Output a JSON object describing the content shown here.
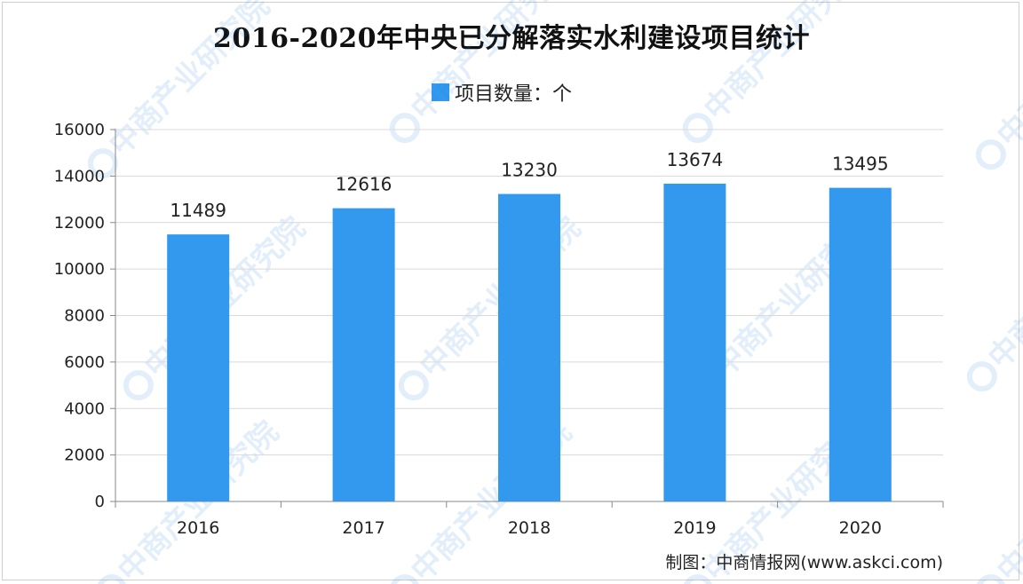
{
  "title": "2016-2020年中央已分解落实水利建设项目统计",
  "legend": {
    "label": "项目数量：个",
    "color": "#3399ee"
  },
  "source": "制图：中商情报网(www.askci.com)",
  "watermark": "中商产业研究院",
  "chart_data": {
    "type": "bar",
    "title": "2016-2020年中央已分解落实水利建设项目统计",
    "categories": [
      "2016",
      "2017",
      "2018",
      "2019",
      "2020"
    ],
    "series": [
      {
        "name": "项目数量：个",
        "values": [
          11489,
          12616,
          13230,
          13674,
          13495
        ]
      }
    ],
    "ylim": [
      0,
      16000
    ],
    "yticks": [
      0,
      2000,
      4000,
      6000,
      8000,
      10000,
      12000,
      14000,
      16000
    ],
    "grid": true,
    "legend_position": "top-center",
    "bar_color": "#3399ee"
  }
}
